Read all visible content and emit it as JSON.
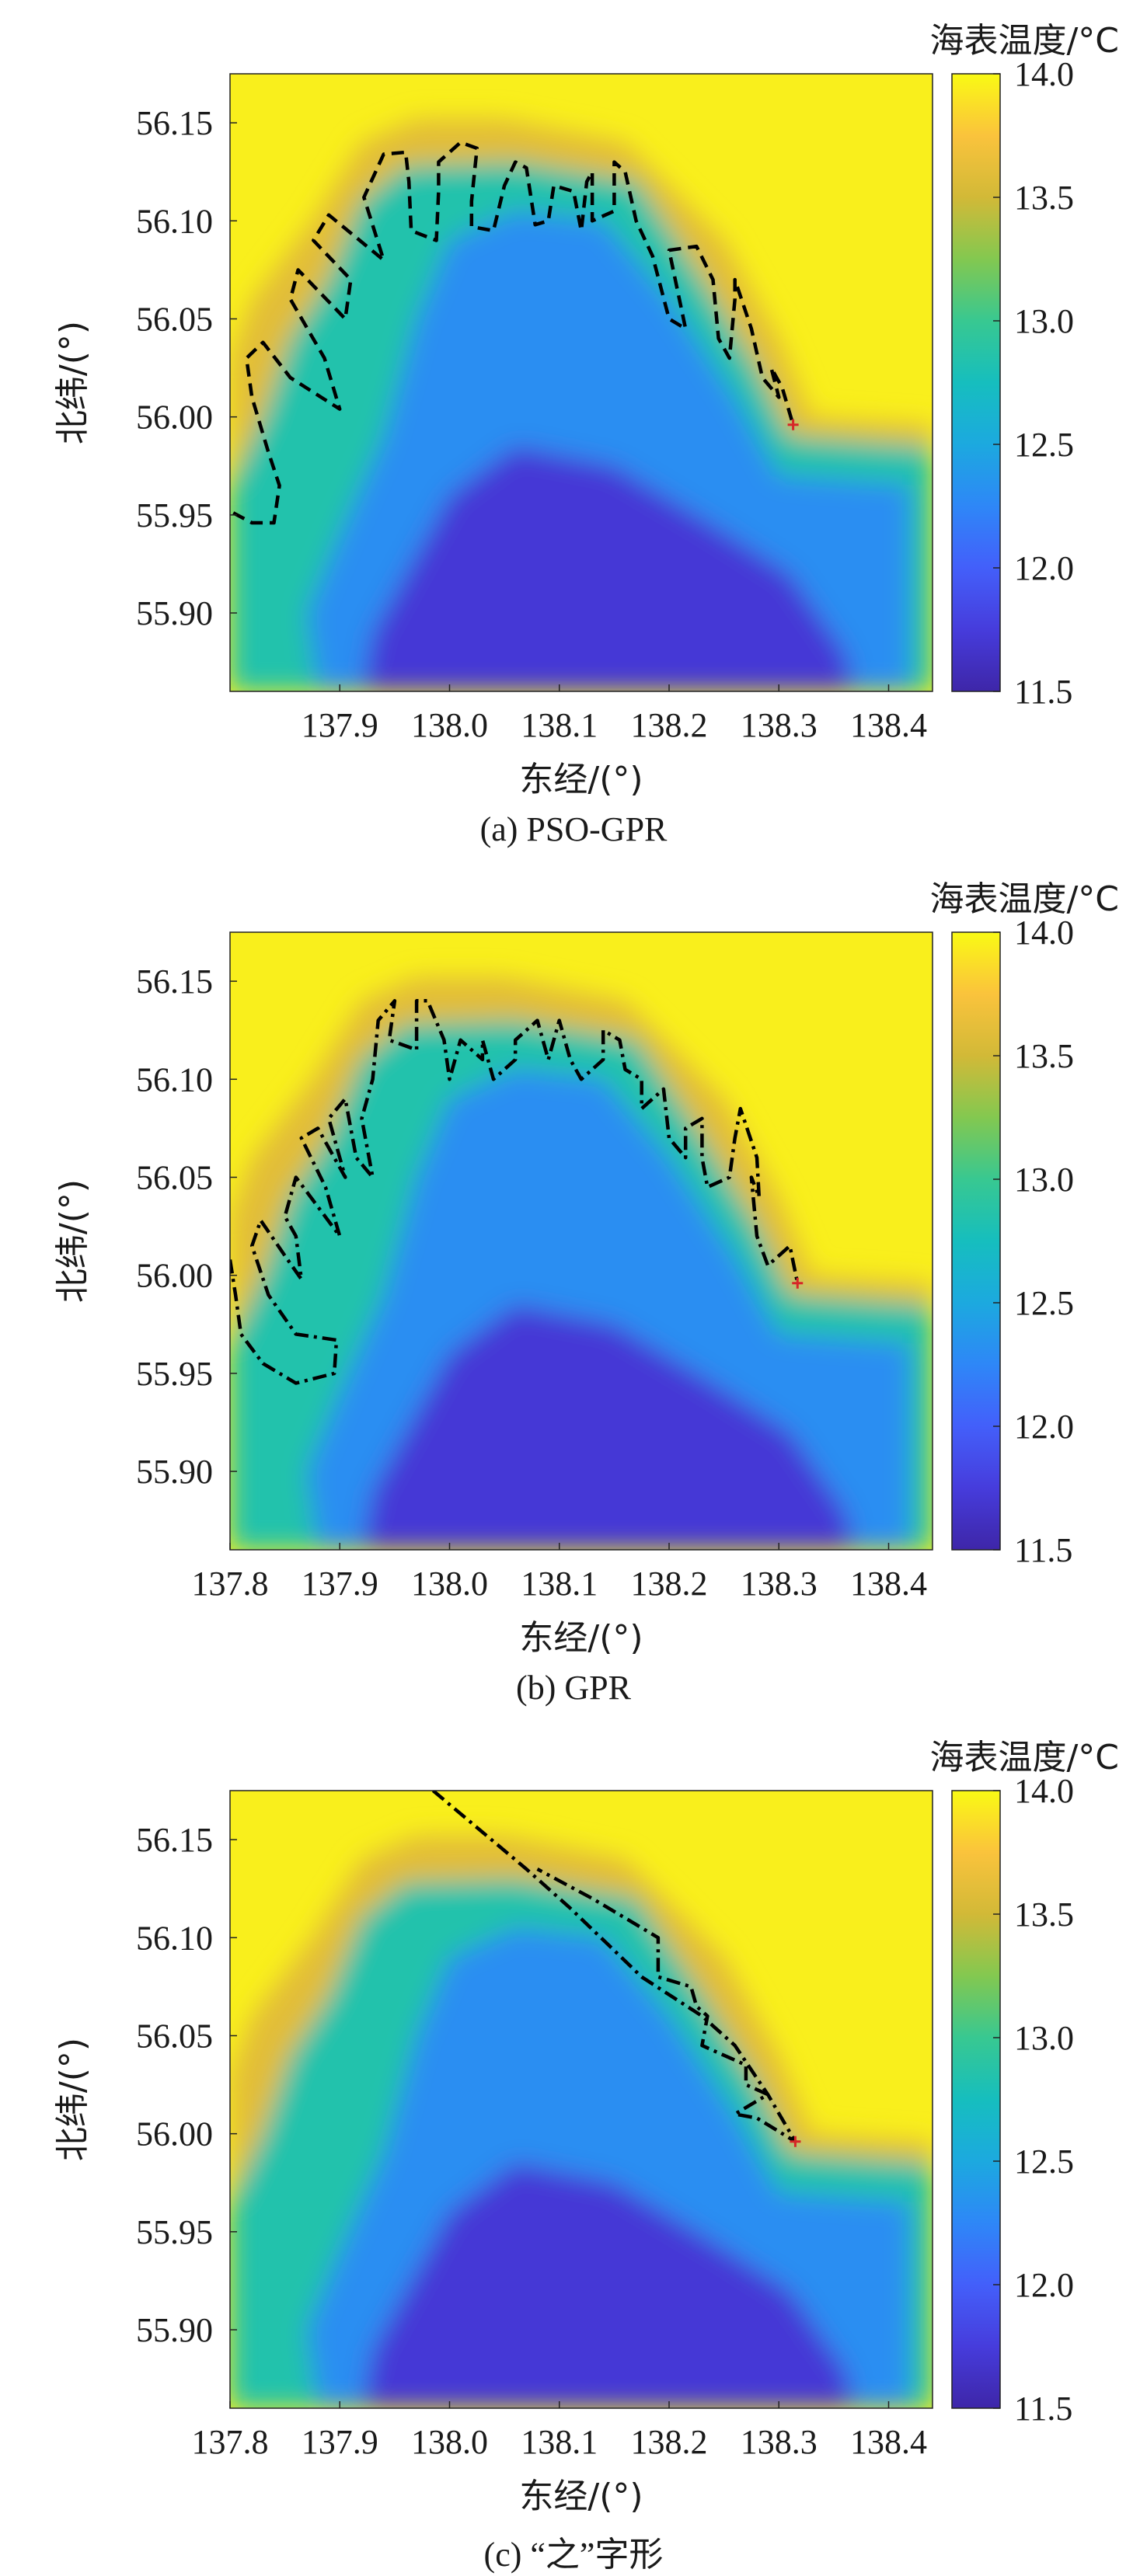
{
  "chart_data": [
    {
      "type": "heatmap",
      "panel": "a",
      "caption": "(a) PSO-GPR",
      "xlabel": "东经/(°)",
      "ylabel": "北纬/(°)",
      "colorbar_label": "海表温度/°C",
      "xlim": [
        137.8,
        138.44
      ],
      "ylim": [
        55.86,
        56.175
      ],
      "xticks": [
        "137.9",
        "138.0",
        "138.1",
        "138.2",
        "138.3",
        "138.4"
      ],
      "yticks": [
        "56.15",
        "56.10",
        "56.05",
        "56.00",
        "55.95",
        "55.90"
      ],
      "colorbar_range": [
        11.5,
        14.0
      ],
      "colorbar_ticks": [
        "14.0",
        "13.5",
        "13.0",
        "12.5",
        "12.0",
        "11.5"
      ],
      "colormap": "parula",
      "line_color": "#000000",
      "line_style": "dashed",
      "start_marker": {
        "x": 138.313,
        "y": 55.996,
        "color": "#d62728"
      },
      "path": [
        [
          137.803,
          55.951
        ],
        [
          137.82,
          55.946
        ],
        [
          137.84,
          55.946
        ],
        [
          137.845,
          55.965
        ],
        [
          137.835,
          55.982
        ],
        [
          137.82,
          56.01
        ],
        [
          137.815,
          56.03
        ],
        [
          137.83,
          56.038
        ],
        [
          137.855,
          56.02
        ],
        [
          137.9,
          56.004
        ],
        [
          137.886,
          56.03
        ],
        [
          137.855,
          56.06
        ],
        [
          137.862,
          56.075
        ],
        [
          137.905,
          56.05
        ],
        [
          137.91,
          56.07
        ],
        [
          137.876,
          56.09
        ],
        [
          137.89,
          56.103
        ],
        [
          137.94,
          56.08
        ],
        [
          137.922,
          56.112
        ],
        [
          137.94,
          56.134
        ],
        [
          137.96,
          56.135
        ],
        [
          137.963,
          56.12
        ],
        [
          137.965,
          56.095
        ],
        [
          137.988,
          56.09
        ],
        [
          137.99,
          56.115
        ],
        [
          137.99,
          56.13
        ],
        [
          138.01,
          56.14
        ],
        [
          138.025,
          56.137
        ],
        [
          138.02,
          56.11
        ],
        [
          138.02,
          56.097
        ],
        [
          138.04,
          56.095
        ],
        [
          138.05,
          56.118
        ],
        [
          138.06,
          56.13
        ],
        [
          138.07,
          56.127
        ],
        [
          138.078,
          56.098
        ],
        [
          138.09,
          56.1
        ],
        [
          138.095,
          56.118
        ],
        [
          138.113,
          56.115
        ],
        [
          138.12,
          56.095
        ],
        [
          138.125,
          56.12
        ],
        [
          138.13,
          56.125
        ],
        [
          138.13,
          56.1
        ],
        [
          138.15,
          56.105
        ],
        [
          138.15,
          56.13
        ],
        [
          138.16,
          56.125
        ],
        [
          138.17,
          56.1
        ],
        [
          138.185,
          56.082
        ],
        [
          138.2,
          56.05
        ],
        [
          138.215,
          56.045
        ],
        [
          138.2,
          56.085
        ],
        [
          138.225,
          56.087
        ],
        [
          138.24,
          56.07
        ],
        [
          138.245,
          56.04
        ],
        [
          138.255,
          56.03
        ],
        [
          138.26,
          56.06
        ],
        [
          138.26,
          56.07
        ],
        [
          138.275,
          56.045
        ],
        [
          138.285,
          56.02
        ],
        [
          138.3,
          56.01
        ],
        [
          138.293,
          56.025
        ],
        [
          138.303,
          56.015
        ],
        [
          138.313,
          55.996
        ]
      ]
    },
    {
      "type": "heatmap",
      "panel": "b",
      "caption": "(b) GPR",
      "xlabel": "东经/(°)",
      "ylabel": "北纬/(°)",
      "colorbar_label": "海表温度/°C",
      "xlim": [
        137.8,
        138.44
      ],
      "ylim": [
        55.86,
        56.175
      ],
      "xticks": [
        "137.8",
        "137.9",
        "138.0",
        "138.1",
        "138.2",
        "138.3",
        "138.4"
      ],
      "yticks": [
        "56.15",
        "56.10",
        "56.05",
        "56.00",
        "55.95",
        "55.90"
      ],
      "colorbar_range": [
        11.5,
        14.0
      ],
      "colorbar_ticks": [
        "14.0",
        "13.5",
        "13.0",
        "12.5",
        "12.0",
        "11.5"
      ],
      "colormap": "parula",
      "line_color": "#000000",
      "line_style": "dashdot",
      "start_marker": {
        "x": 138.317,
        "y": 55.996,
        "color": "#d62728"
      },
      "path": [
        [
          137.8,
          56.008
        ],
        [
          137.805,
          55.99
        ],
        [
          137.81,
          55.97
        ],
        [
          137.83,
          55.955
        ],
        [
          137.86,
          55.945
        ],
        [
          137.895,
          55.95
        ],
        [
          137.897,
          55.967
        ],
        [
          137.86,
          55.97
        ],
        [
          137.835,
          55.99
        ],
        [
          137.82,
          56.015
        ],
        [
          137.828,
          56.028
        ],
        [
          137.85,
          56.01
        ],
        [
          137.865,
          55.998
        ],
        [
          137.86,
          56.02
        ],
        [
          137.85,
          56.03
        ],
        [
          137.86,
          56.05
        ],
        [
          137.88,
          56.035
        ],
        [
          137.9,
          56.02
        ],
        [
          137.887,
          56.045
        ],
        [
          137.865,
          56.07
        ],
        [
          137.88,
          56.075
        ],
        [
          137.905,
          56.05
        ],
        [
          137.89,
          56.08
        ],
        [
          137.905,
          56.09
        ],
        [
          137.915,
          56.06
        ],
        [
          137.93,
          56.05
        ],
        [
          137.92,
          56.08
        ],
        [
          137.93,
          56.1
        ],
        [
          137.935,
          56.13
        ],
        [
          137.95,
          56.14
        ],
        [
          137.945,
          56.12
        ],
        [
          137.97,
          56.115
        ],
        [
          137.97,
          56.14
        ],
        [
          137.98,
          56.14
        ],
        [
          137.995,
          56.12
        ],
        [
          138.0,
          56.1
        ],
        [
          138.01,
          56.12
        ],
        [
          138.03,
          56.11
        ],
        [
          138.03,
          56.12
        ],
        [
          138.04,
          56.1
        ],
        [
          138.06,
          56.11
        ],
        [
          138.06,
          56.12
        ],
        [
          138.08,
          56.13
        ],
        [
          138.09,
          56.11
        ],
        [
          138.1,
          56.13
        ],
        [
          138.11,
          56.11
        ],
        [
          138.12,
          56.1
        ],
        [
          138.14,
          56.11
        ],
        [
          138.14,
          56.125
        ],
        [
          138.155,
          56.12
        ],
        [
          138.16,
          56.105
        ],
        [
          138.175,
          56.1
        ],
        [
          138.175,
          56.085
        ],
        [
          138.195,
          56.095
        ],
        [
          138.2,
          56.07
        ],
        [
          138.215,
          56.06
        ],
        [
          138.215,
          56.075
        ],
        [
          138.23,
          56.08
        ],
        [
          138.23,
          56.06
        ],
        [
          138.235,
          56.045
        ],
        [
          138.255,
          56.05
        ],
        [
          138.26,
          56.07
        ],
        [
          138.265,
          56.085
        ],
        [
          138.28,
          56.06
        ],
        [
          138.282,
          56.04
        ],
        [
          138.275,
          56.05
        ],
        [
          138.28,
          56.02
        ],
        [
          138.29,
          56.005
        ],
        [
          138.31,
          56.015
        ],
        [
          138.317,
          55.996
        ]
      ]
    },
    {
      "type": "heatmap",
      "panel": "c",
      "caption": "(c) “之”字形",
      "xlabel": "东经/(°)",
      "ylabel": "北纬/(°)",
      "colorbar_label": "海表温度/°C",
      "xlim": [
        137.8,
        138.44
      ],
      "ylim": [
        55.86,
        56.175
      ],
      "xticks": [
        "137.8",
        "137.9",
        "138.0",
        "138.1",
        "138.2",
        "138.3",
        "138.4"
      ],
      "yticks": [
        "56.15",
        "56.10",
        "56.05",
        "56.00",
        "55.95",
        "55.90"
      ],
      "colorbar_range": [
        11.5,
        14.0
      ],
      "colorbar_ticks": [
        "14.0",
        "13.5",
        "13.0",
        "12.5",
        "12.0",
        "11.5"
      ],
      "colormap": "parula",
      "line_color": "#000000",
      "line_style": "dashdot",
      "start_marker": {
        "x": 138.315,
        "y": 55.996,
        "color": "#d62728"
      },
      "path": [
        [
          137.985,
          56.175
        ],
        [
          138.07,
          56.135
        ],
        [
          138.11,
          56.115
        ],
        [
          138.175,
          56.08
        ],
        [
          138.23,
          56.06
        ],
        [
          138.26,
          56.045
        ],
        [
          138.29,
          56.02
        ],
        [
          138.315,
          55.996
        ],
        [
          138.28,
          56.008
        ],
        [
          138.26,
          56.01
        ],
        [
          138.29,
          56.02
        ],
        [
          138.27,
          56.025
        ],
        [
          138.27,
          56.035
        ],
        [
          138.25,
          56.04
        ],
        [
          138.23,
          56.045
        ],
        [
          138.235,
          56.06
        ],
        [
          138.225,
          56.065
        ],
        [
          138.22,
          56.075
        ],
        [
          138.19,
          56.08
        ],
        [
          138.19,
          56.1
        ],
        [
          138.16,
          56.11
        ],
        [
          138.13,
          56.12
        ],
        [
          138.08,
          56.135
        ]
      ]
    }
  ]
}
